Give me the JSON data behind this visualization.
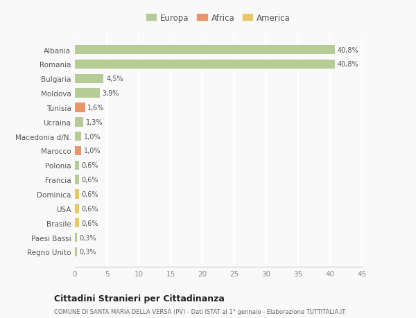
{
  "categories": [
    "Albania",
    "Romania",
    "Bulgaria",
    "Moldova",
    "Tunisia",
    "Ucraina",
    "Macedonia d/N.",
    "Marocco",
    "Polonia",
    "Francia",
    "Dominica",
    "USA",
    "Brasile",
    "Paesi Bassi",
    "Regno Unito"
  ],
  "values": [
    40.8,
    40.8,
    4.5,
    3.9,
    1.6,
    1.3,
    1.0,
    1.0,
    0.6,
    0.6,
    0.6,
    0.6,
    0.6,
    0.3,
    0.3
  ],
  "labels": [
    "40,8%",
    "40,8%",
    "4,5%",
    "3,9%",
    "1,6%",
    "1,3%",
    "1,0%",
    "1,0%",
    "0,6%",
    "0,6%",
    "0,6%",
    "0,6%",
    "0,6%",
    "0,3%",
    "0,3%"
  ],
  "continent": [
    "Europa",
    "Europa",
    "Europa",
    "Europa",
    "Africa",
    "Europa",
    "Europa",
    "Africa",
    "Europa",
    "Europa",
    "America",
    "America",
    "America",
    "Europa",
    "Europa"
  ],
  "colors": {
    "Europa": "#b5cc96",
    "Africa": "#e8956a",
    "America": "#e8c96a"
  },
  "legend_labels": [
    "Europa",
    "Africa",
    "America"
  ],
  "legend_colors": [
    "#b5cc96",
    "#e8956a",
    "#e8c96a"
  ],
  "title": "Cittadini Stranieri per Cittadinanza",
  "subtitle": "COMUNE DI SANTA MARIA DELLA VERSA (PV) - Dati ISTAT al 1° gennaio - Elaborazione TUTTITALIA.IT",
  "xlim": [
    0,
    45
  ],
  "xticks": [
    0,
    5,
    10,
    15,
    20,
    25,
    30,
    35,
    40,
    45
  ],
  "background_color": "#f9f9f9",
  "grid_color": "#ffffff",
  "bar_height": 0.65
}
